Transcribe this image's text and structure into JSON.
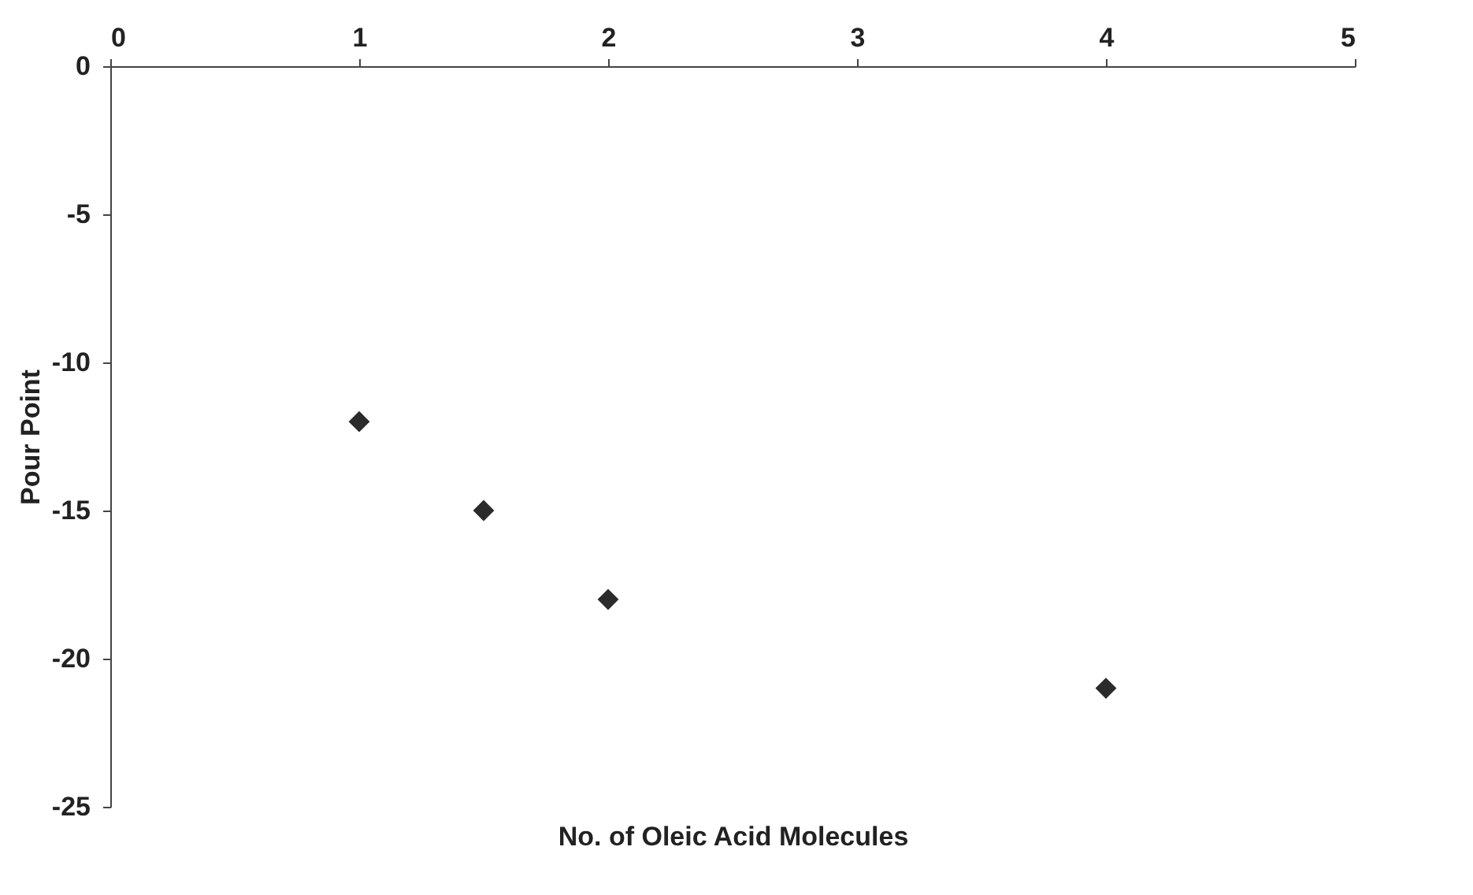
{
  "chart_data": {
    "type": "scatter",
    "xlabel": "No. of Oleic Acid Molecules",
    "ylabel": "Pour Point",
    "x": [
      1,
      1.5,
      2,
      4
    ],
    "series": [
      {
        "color": "#2b2b2b",
        "values": [
          -12,
          -15,
          -18,
          -21
        ]
      }
    ],
    "xlim": [
      0,
      5
    ],
    "xticks": [
      0,
      1,
      2,
      3,
      4,
      5
    ],
    "ylim": [
      -25,
      0
    ],
    "yticks": [
      -25,
      -20,
      -15,
      -10,
      -5,
      0
    ],
    "marker": "diamond",
    "grid": false
  }
}
